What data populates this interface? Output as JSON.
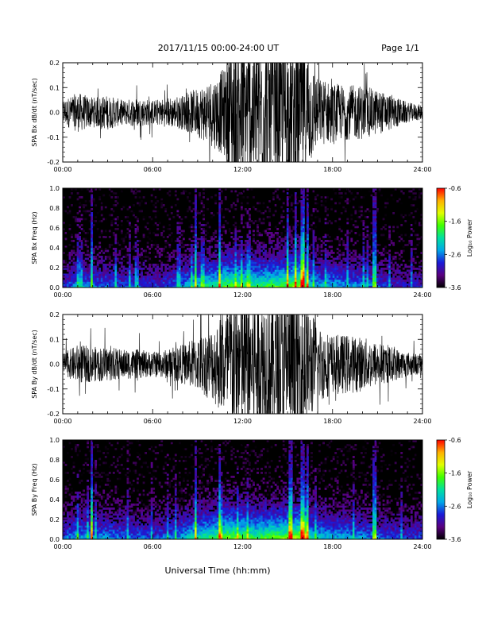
{
  "header": {
    "title": "2017/11/15  00:00-24:00 UT",
    "page": "Page 1/1"
  },
  "footer": {
    "xlabel": "Universal Time (hh:mm)"
  },
  "colorbar": {
    "label": "Log₁₀ Power",
    "ticks": [
      "-0.6",
      "-1.6",
      "-2.6",
      "-3.6"
    ],
    "range": [
      -3.6,
      -0.6
    ],
    "colors": [
      "#000000",
      "#5a0080",
      "#1a1ad8",
      "#00a8e8",
      "#00e0a0",
      "#40ff00",
      "#e0ff00",
      "#ffb000",
      "#ff0000"
    ]
  },
  "chart_data": [
    {
      "type": "line",
      "ylabel": "SPA Bx dB/dt (nT/sec)",
      "x_unit": "hours UT",
      "xlim": [
        0,
        24
      ],
      "ylim": [
        -0.2,
        0.2
      ],
      "xticks": [
        "00:00",
        "06:00",
        "12:00",
        "18:00",
        "24:00"
      ],
      "yticks": [
        "0.2",
        "0.1",
        "0.0",
        "-0.1",
        "-0.2"
      ],
      "ytick_values": [
        0.2,
        0.1,
        0.0,
        -0.1,
        -0.2
      ],
      "envelope": {
        "x": [
          0,
          1,
          2,
          3,
          4,
          5,
          6,
          7,
          8,
          9,
          10,
          10.8,
          11.2,
          12,
          13,
          14,
          15,
          16,
          17,
          18,
          19,
          20,
          21,
          22,
          23,
          24
        ],
        "amp": [
          0.05,
          0.08,
          0.06,
          0.07,
          0.05,
          0.06,
          0.05,
          0.06,
          0.07,
          0.1,
          0.14,
          0.18,
          0.3,
          0.3,
          0.3,
          0.3,
          0.3,
          0.3,
          0.14,
          0.12,
          0.11,
          0.11,
          0.09,
          0.07,
          0.04,
          0.03
        ]
      },
      "series": [
        {
          "values": []
        }
      ]
    },
    {
      "type": "heatmap",
      "ylabel": "SPA Bx Freq (Hz)",
      "x_unit": "hours UT",
      "xlim": [
        0,
        24
      ],
      "ylim": [
        0.0,
        1.0
      ],
      "xticks": [
        "00:00",
        "06:00",
        "12:00",
        "18:00",
        "24:00"
      ],
      "yticks": [
        "1.0",
        "0.8",
        "0.6",
        "0.4",
        "0.2",
        "0.0"
      ],
      "ytick_values": [
        1.0,
        0.8,
        0.6,
        0.4,
        0.2,
        0.0
      ],
      "z_unit": "log10 power",
      "zlim": [
        -3.6,
        -0.6
      ],
      "activity": {
        "x": [
          0,
          1,
          2,
          3,
          4,
          5,
          6,
          7,
          8,
          9,
          10,
          11,
          12,
          13,
          14,
          15,
          16,
          16.5,
          17,
          18,
          19,
          20,
          21,
          22,
          23,
          24
        ],
        "level": [
          0.3,
          0.45,
          0.4,
          0.4,
          0.35,
          0.35,
          0.3,
          0.35,
          0.45,
          0.6,
          0.65,
          0.8,
          0.75,
          0.7,
          0.75,
          0.8,
          0.95,
          0.6,
          0.5,
          0.5,
          0.45,
          0.45,
          0.35,
          0.3,
          0.25,
          0.3
        ]
      },
      "bright_streaks": [
        1.9,
        8.9,
        10.5,
        15.0,
        15.5,
        16.0,
        16.3,
        20.8
      ],
      "values": []
    },
    {
      "type": "line",
      "ylabel": "SPA By dB/dt (nT/sec)",
      "x_unit": "hours UT",
      "xlim": [
        0,
        24
      ],
      "ylim": [
        -0.2,
        0.2
      ],
      "xticks": [
        "00:00",
        "06:00",
        "12:00",
        "18:00",
        "24:00"
      ],
      "yticks": [
        "0.2",
        "0.1",
        "0.0",
        "-0.1",
        "-0.2"
      ],
      "ytick_values": [
        0.2,
        0.1,
        0.0,
        -0.1,
        -0.2
      ],
      "envelope": {
        "x": [
          0,
          1,
          2,
          3,
          4,
          5,
          6,
          7,
          8,
          9,
          10,
          10.8,
          11.2,
          12,
          13,
          14,
          15,
          16,
          17,
          18,
          19,
          20,
          21,
          22,
          23,
          24
        ],
        "amp": [
          0.04,
          0.08,
          0.07,
          0.07,
          0.06,
          0.06,
          0.05,
          0.06,
          0.08,
          0.11,
          0.15,
          0.22,
          0.3,
          0.3,
          0.3,
          0.3,
          0.3,
          0.3,
          0.16,
          0.12,
          0.12,
          0.11,
          0.09,
          0.07,
          0.05,
          0.04
        ]
      },
      "series": [
        {
          "values": []
        }
      ]
    },
    {
      "type": "heatmap",
      "ylabel": "SPA By Freq (Hz)",
      "x_unit": "hours UT",
      "xlim": [
        0,
        24
      ],
      "ylim": [
        0.0,
        1.0
      ],
      "xticks": [
        "00:00",
        "06:00",
        "12:00",
        "18:00",
        "24:00"
      ],
      "yticks": [
        "1.0",
        "0.8",
        "0.6",
        "0.4",
        "0.2",
        "0.0"
      ],
      "ytick_values": [
        1.0,
        0.8,
        0.6,
        0.4,
        0.2,
        0.0
      ],
      "z_unit": "log10 power",
      "zlim": [
        -3.6,
        -0.6
      ],
      "activity": {
        "x": [
          0,
          1,
          2,
          3,
          4,
          5,
          6,
          7,
          8,
          9,
          10,
          11,
          12,
          13,
          14,
          15,
          16,
          16.5,
          17,
          18,
          19,
          20,
          21,
          22,
          23,
          24
        ],
        "level": [
          0.35,
          0.5,
          0.45,
          0.45,
          0.4,
          0.4,
          0.35,
          0.4,
          0.5,
          0.65,
          0.7,
          0.85,
          0.8,
          0.75,
          0.8,
          0.85,
          0.95,
          0.65,
          0.55,
          0.5,
          0.5,
          0.45,
          0.4,
          0.35,
          0.3,
          0.35
        ]
      },
      "bright_streaks": [
        1.9,
        8.9,
        10.5,
        15.2,
        16.0,
        16.3,
        20.8
      ],
      "values": []
    }
  ]
}
